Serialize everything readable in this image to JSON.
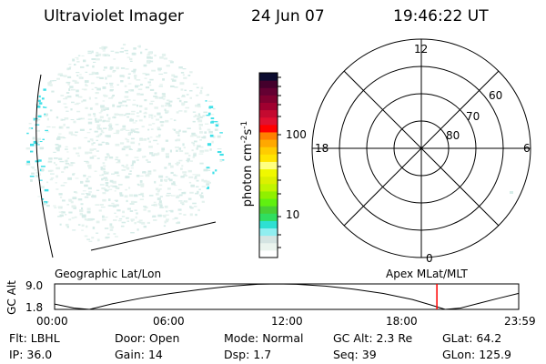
{
  "header": {
    "instrument": "Ultraviolet Imager",
    "date": "24 Jun 07",
    "time": "19:46:22 UT"
  },
  "colorbar": {
    "label": "photon cm",
    "label_exp1": "-2",
    "label_mid": "s",
    "label_exp2": "-1",
    "ticks": [
      "100",
      "10"
    ],
    "colors": [
      "#ffffff",
      "#eaf4ee",
      "#d4e4e2",
      "#90eef0",
      "#2ee0d2",
      "#30de60",
      "#48d034",
      "#60f010",
      "#90f000",
      "#c0f400",
      "#dcf000",
      "#f0f800",
      "#ffff80",
      "#ffe400",
      "#ffcc00",
      "#ffa800",
      "#ff8000",
      "#ff0000",
      "#e01030",
      "#c40a30",
      "#a00030",
      "#800030",
      "#640032",
      "#44002c",
      "#0c0c30"
    ]
  },
  "polar": {
    "mlt_labels": [
      "12",
      "18",
      "6",
      "0"
    ],
    "lat_labels": [
      "60",
      "70",
      "80"
    ]
  },
  "panel_labels": {
    "left": "Geographic Lat/Lon",
    "right": "Apex MLat/MLT"
  },
  "colors": {
    "marker": "#ff0000",
    "aurora": "#40e0e8"
  },
  "chart_data": {
    "type": "line",
    "ylabel": "GC Alt",
    "yticks": [
      "9.0",
      "1.8"
    ],
    "ylim": [
      1.8,
      9.0
    ],
    "xticks": [
      "00:00",
      "06:00",
      "12:00",
      "18:00",
      "23:59"
    ],
    "x": [
      0,
      1,
      1.8,
      3,
      4.5,
      6,
      7.5,
      9,
      10.5,
      11.5,
      12.5,
      14,
      15.5,
      17,
      18.5,
      19.5,
      20.2,
      21,
      22,
      23,
      23.98
    ],
    "y": [
      3.3,
      2.2,
      1.8,
      3.4,
      5.0,
      6.3,
      7.4,
      8.3,
      8.9,
      9.0,
      8.9,
      8.4,
      7.5,
      6.3,
      4.6,
      3.0,
      1.8,
      2.2,
      3.6,
      5.0,
      6.3
    ],
    "marker_time": 19.77
  },
  "info": {
    "rows": [
      [
        {
          "k": "Flt:",
          "v": "LBHL"
        },
        {
          "k": "Door:",
          "v": "Open"
        },
        {
          "k": "Mode:",
          "v": "Normal"
        },
        {
          "k": "GC Alt:",
          "v": "2.3 Re"
        },
        {
          "k": "GLat:",
          "v": "64.2"
        }
      ],
      [
        {
          "k": "IP:",
          "v": "36.0"
        },
        {
          "k": "Gain:",
          "v": "14"
        },
        {
          "k": "Dsp:",
          "v": "1.7"
        },
        {
          "k": "Seq:",
          "v": "39"
        },
        {
          "k": "GLon:",
          "v": "125.9"
        }
      ]
    ]
  }
}
